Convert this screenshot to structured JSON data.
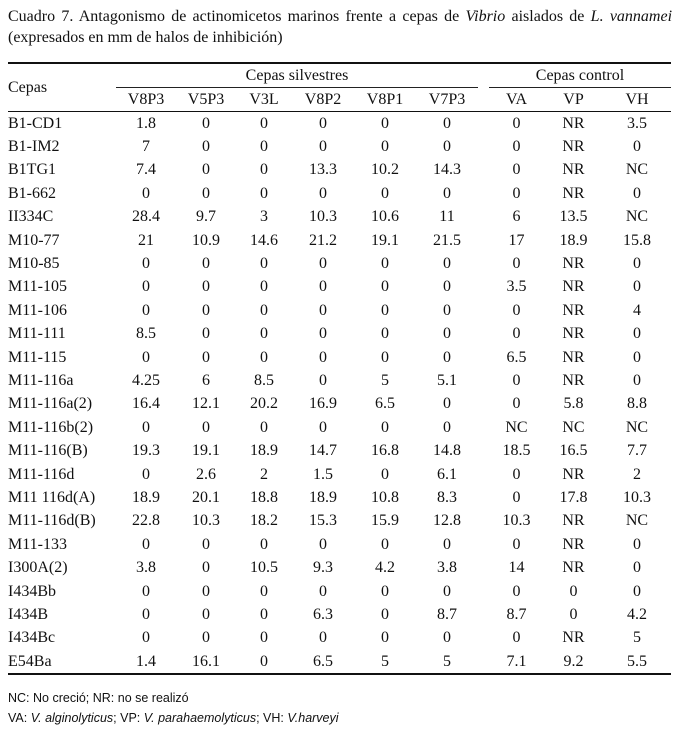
{
  "caption": {
    "label": "Cuadro 7.",
    "text_pre": "Antagonismo de actinomicetos marinos frente a cepas de",
    "genus": "Vibrio",
    "text_mid": "aislados de",
    "species": "L. vannamei",
    "text_post": "(expresados en mm de halos de inhibición)"
  },
  "table": {
    "row_header": "Cepas",
    "group_wild": "Cepas silvestres",
    "group_control": "Cepas control",
    "wild_columns": [
      "V8P3",
      "V5P3",
      "V3L",
      "V8P2",
      "V8P1",
      "V7P3"
    ],
    "control_columns": [
      "VA",
      "VP",
      "VH"
    ],
    "rows": [
      {
        "name": "B1-CD1",
        "values": [
          "1.8",
          "0",
          "0",
          "0",
          "0",
          "0",
          "0",
          "NR",
          "3.5"
        ]
      },
      {
        "name": "B1-IM2",
        "values": [
          "7",
          "0",
          "0",
          "0",
          "0",
          "0",
          "0",
          "NR",
          "0"
        ]
      },
      {
        "name": "B1TG1",
        "values": [
          "7.4",
          "0",
          "0",
          "13.3",
          "10.2",
          "14.3",
          "0",
          "NR",
          "NC"
        ]
      },
      {
        "name": "B1-662",
        "values": [
          "0",
          "0",
          "0",
          "0",
          "0",
          "0",
          "0",
          "NR",
          "0"
        ]
      },
      {
        "name": "II334C",
        "values": [
          "28.4",
          "9.7",
          "3",
          "10.3",
          "10.6",
          "11",
          "6",
          "13.5",
          "NC"
        ]
      },
      {
        "name": "M10-77",
        "values": [
          "21",
          "10.9",
          "14.6",
          "21.2",
          "19.1",
          "21.5",
          "17",
          "18.9",
          "15.8"
        ]
      },
      {
        "name": "M10-85",
        "values": [
          "0",
          "0",
          "0",
          "0",
          "0",
          "0",
          "0",
          "NR",
          "0"
        ]
      },
      {
        "name": "M11-105",
        "values": [
          "0",
          "0",
          "0",
          "0",
          "0",
          "0",
          "3.5",
          "NR",
          "0"
        ]
      },
      {
        "name": "M11-106",
        "values": [
          "0",
          "0",
          "0",
          "0",
          "0",
          "0",
          "0",
          "NR",
          "4"
        ]
      },
      {
        "name": "M11-111",
        "values": [
          "8.5",
          "0",
          "0",
          "0",
          "0",
          "0",
          "0",
          "NR",
          "0"
        ]
      },
      {
        "name": "M11-115",
        "values": [
          "0",
          "0",
          "0",
          "0",
          "0",
          "0",
          "6.5",
          "NR",
          "0"
        ]
      },
      {
        "name": "M11-116a",
        "values": [
          "4.25",
          "6",
          "8.5",
          "0",
          "5",
          "5.1",
          "0",
          "NR",
          "0"
        ]
      },
      {
        "name": "M11-116a(2)",
        "values": [
          "16.4",
          "12.1",
          "20.2",
          "16.9",
          "6.5",
          "0",
          "0",
          "5.8",
          "8.8"
        ]
      },
      {
        "name": "M11-116b(2)",
        "values": [
          "0",
          "0",
          "0",
          "0",
          "0",
          "0",
          "NC",
          "NC",
          "NC"
        ]
      },
      {
        "name": "M11-116(B)",
        "values": [
          "19.3",
          "19.1",
          "18.9",
          "14.7",
          "16.8",
          "14.8",
          "18.5",
          "16.5",
          "7.7"
        ]
      },
      {
        "name": "M11-116d",
        "values": [
          "0",
          "2.6",
          "2",
          "1.5",
          "0",
          "6.1",
          "0",
          "NR",
          "2"
        ]
      },
      {
        "name": "M11 116d(A)",
        "values": [
          "18.9",
          "20.1",
          "18.8",
          "18.9",
          "10.8",
          "8.3",
          "0",
          "17.8",
          "10.3"
        ]
      },
      {
        "name": "M11-116d(B)",
        "values": [
          "22.8",
          "10.3",
          "18.2",
          "15.3",
          "15.9",
          "12.8",
          "10.3",
          "NR",
          "NC"
        ]
      },
      {
        "name": "M11-133",
        "values": [
          "0",
          "0",
          "0",
          "0",
          "0",
          "0",
          "0",
          "NR",
          "0"
        ]
      },
      {
        "name": "I300A(2)",
        "values": [
          "3.8",
          "0",
          "10.5",
          "9.3",
          "4.2",
          "3.8",
          "14",
          "NR",
          "0"
        ]
      },
      {
        "name": "I434Bb",
        "values": [
          "0",
          "0",
          "0",
          "0",
          "0",
          "0",
          "0",
          "0",
          "0"
        ]
      },
      {
        "name": "I434B",
        "values": [
          "0",
          "0",
          "0",
          "6.3",
          "0",
          "8.7",
          "8.7",
          "0",
          "4.2"
        ]
      },
      {
        "name": "I434Bc",
        "values": [
          "0",
          "0",
          "0",
          "0",
          "0",
          "0",
          "0",
          "NR",
          "5"
        ]
      },
      {
        "name": "E54Ba",
        "values": [
          "1.4",
          "16.1",
          "0",
          "6.5",
          "5",
          "5",
          "7.1",
          "9.2",
          "5.5"
        ]
      }
    ]
  },
  "notes": {
    "line1": "NC: No creció; NR: no se realizó",
    "va_code": "VA:",
    "va_name": "V. alginolyticus",
    "vp_code": "; VP:",
    "vp_name": "V. parahaemolyticus",
    "vh_code": "; VH:",
    "vh_name": "V.harveyi"
  }
}
